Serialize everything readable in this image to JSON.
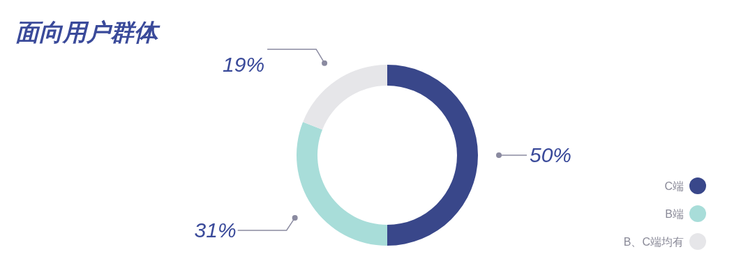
{
  "chart_data": {
    "type": "donut",
    "title": "面向用户群体",
    "categories": [
      "C端",
      "B端",
      "B、C端均有"
    ],
    "values": [
      50,
      31,
      19
    ],
    "colors": [
      "#39478a",
      "#a8ddd9",
      "#e6e6e9"
    ],
    "value_labels": [
      "50%",
      "31%",
      "19%"
    ],
    "legend": "right"
  }
}
